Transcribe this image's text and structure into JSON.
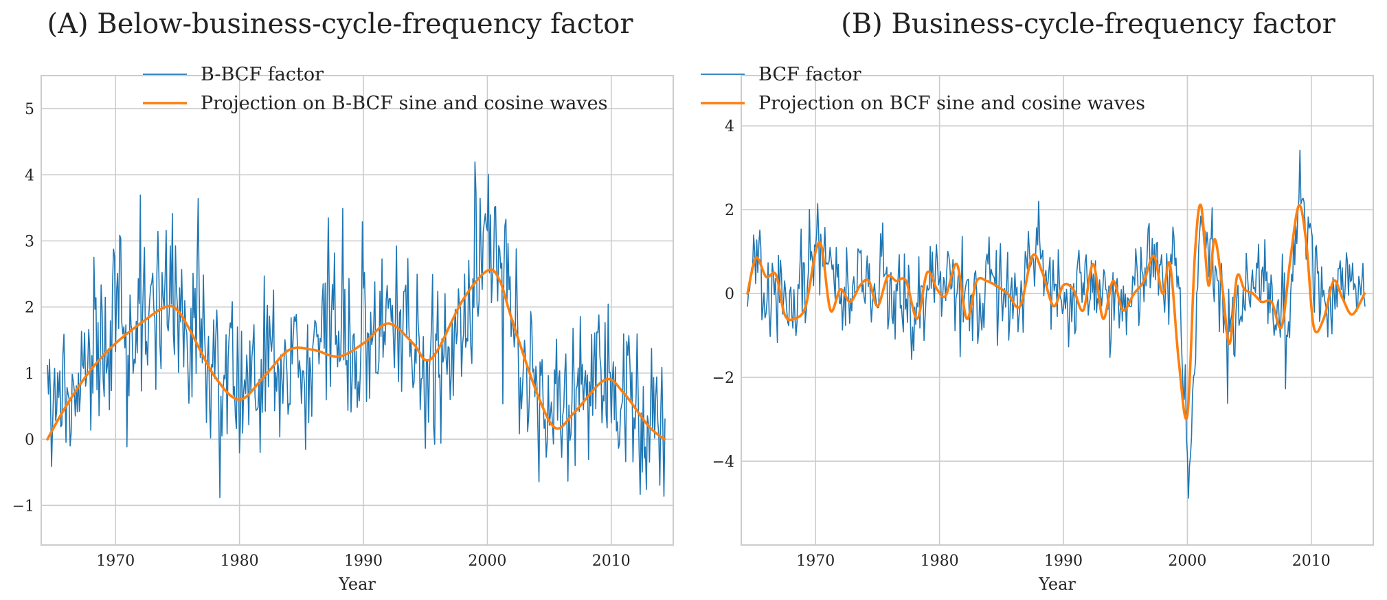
{
  "chart_data": [
    {
      "type": "line",
      "title": "(A) Below-business-cycle-frequency factor",
      "xlabel": "Year",
      "ylabel": "",
      "xlim": [
        1964,
        2015
      ],
      "ylim": [
        -1.6,
        5.5
      ],
      "xticks": [
        1970,
        1980,
        1990,
        2000,
        2010
      ],
      "yticks": [
        -1,
        0,
        1,
        2,
        3,
        4,
        5
      ],
      "ytick_labels": [
        "−1",
        "0",
        "1",
        "2",
        "3",
        "4",
        "5"
      ],
      "grid": true,
      "legend": "top-center",
      "noise_seed": 7,
      "series": [
        {
          "name": "B-BCF factor",
          "color": "#1f77b4",
          "style": "noisy-monthly",
          "x": [
            1964.5,
            1965.5,
            1966.5,
            1967.5,
            1968.5,
            1969.5,
            1970.5,
            1971.5,
            1972.5,
            1973.5,
            1974.5,
            1975.0,
            1975.5,
            1976.5,
            1977.5,
            1978.5,
            1979.5,
            1980.5,
            1981.5,
            1982.5,
            1983.5,
            1984.5,
            1985.5,
            1986.5,
            1987.5,
            1988.5,
            1989.5,
            1990.5,
            1991.5,
            1992.5,
            1993.5,
            1994.5,
            1995.5,
            1996.5,
            1997.5,
            1998.5,
            1999.5,
            2000.0,
            2000.5,
            2001.0,
            2001.5,
            2002.5,
            2003.5,
            2004.5,
            2005.5,
            2006.5,
            2007.5,
            2008.5,
            2009.5,
            2010.5,
            2011.5,
            2012.5,
            2013.5,
            2014.3
          ],
          "values": [
            0.2,
            0.4,
            0.7,
            1.0,
            1.2,
            1.4,
            1.6,
            1.7,
            1.9,
            2.0,
            2.2,
            2.6,
            1.9,
            1.6,
            1.4,
            1.1,
            0.9,
            0.7,
            0.7,
            0.8,
            1.1,
            1.4,
            1.4,
            1.3,
            1.5,
            1.3,
            1.4,
            1.5,
            1.8,
            1.7,
            1.6,
            1.4,
            1.3,
            1.4,
            1.7,
            2.1,
            2.6,
            3.2,
            2.8,
            2.6,
            2.2,
            1.5,
            0.9,
            0.5,
            0.2,
            0.3,
            0.5,
            0.8,
            1.0,
            0.8,
            0.6,
            0.4,
            0.3,
            0.2
          ],
          "noise_amplitude": 0.75
        },
        {
          "name": "Projection on B-BCF sine and cosine waves",
          "color": "#ff7f0e",
          "style": "smooth",
          "x": [
            1964.5,
            1966,
            1968,
            1970,
            1972,
            1974,
            1975,
            1976,
            1978,
            1980,
            1982,
            1984,
            1986,
            1988,
            1990,
            1992,
            1994,
            1995,
            1996,
            1998,
            2000,
            2001,
            2002,
            2004,
            2005.5,
            2007,
            2009.5,
            2011,
            2013,
            2014.3
          ],
          "values": [
            0.0,
            0.5,
            1.05,
            1.45,
            1.75,
            2.0,
            1.95,
            1.65,
            0.95,
            0.6,
            0.95,
            1.35,
            1.35,
            1.25,
            1.45,
            1.75,
            1.45,
            1.2,
            1.35,
            2.1,
            2.55,
            2.4,
            1.8,
            0.7,
            0.17,
            0.4,
            0.9,
            0.7,
            0.2,
            0.0
          ]
        }
      ]
    },
    {
      "type": "line",
      "title": "(B) Business-cycle-frequency factor",
      "xlabel": "Year",
      "ylabel": "",
      "xlim": [
        1964,
        2015
      ],
      "ylim": [
        -6.0,
        5.2
      ],
      "xticks": [
        1970,
        1980,
        1990,
        2000,
        2010
      ],
      "yticks": [
        -4,
        -2,
        0,
        2,
        4
      ],
      "ytick_labels": [
        "−4",
        "−2",
        "0",
        "2",
        "4"
      ],
      "grid": true,
      "legend": "top-left",
      "noise_seed": 23,
      "series": [
        {
          "name": "BCF factor",
          "color": "#1f77b4",
          "style": "noisy-monthly",
          "x": [
            1964.5,
            1966,
            1967.5,
            1969,
            1970.5,
            1972,
            1974,
            1976,
            1978,
            1980,
            1982,
            1983,
            1984,
            1986,
            1988,
            1990,
            1992,
            1994,
            1996,
            1997.5,
            1999,
            1999.8,
            2000.1,
            2001,
            2002,
            2003.5,
            2005,
            2007,
            2008,
            2009,
            2009.8,
            2011,
            2012.5,
            2014.3
          ],
          "values": [
            0.3,
            0.8,
            -0.5,
            0.0,
            1.0,
            -0.3,
            0.4,
            0.2,
            -0.5,
            0.4,
            0.5,
            -0.6,
            0.3,
            0.0,
            0.8,
            -0.3,
            0.5,
            -0.3,
            0.3,
            0.8,
            0.5,
            -2.8,
            -4.8,
            1.5,
            0.3,
            -1.1,
            0.3,
            -0.3,
            -0.7,
            2.2,
            1.5,
            -0.8,
            0.2,
            0.0
          ],
          "noise_amplitude": 0.65
        },
        {
          "name": "Projection on BCF sine and cosine waves",
          "color": "#ff7f0e",
          "style": "smooth",
          "x": [
            1964.5,
            1965.2,
            1966,
            1966.8,
            1967.5,
            1968.3,
            1969.2,
            1970,
            1970.5,
            1971.2,
            1972,
            1972.8,
            1973.6,
            1974.3,
            1975,
            1975.8,
            1976.5,
            1977.3,
            1978.2,
            1979,
            1979.8,
            1980.5,
            1981.4,
            1982.2,
            1983,
            1983.8,
            1984.5,
            1985.5,
            1986.5,
            1987.5,
            1988.3,
            1989.2,
            1990,
            1990.8,
            1991.6,
            1992.4,
            1993.2,
            1994,
            1994.8,
            1995.7,
            1996.5,
            1997.3,
            1998,
            1998.6,
            1999.3,
            2000,
            2000.6,
            2001.1,
            2001.7,
            2002.2,
            2002.8,
            2003.4,
            2004,
            2004.6,
            2005.3,
            2006,
            2006.8,
            2007.6,
            2008.3,
            2009,
            2009.6,
            2010.2,
            2011,
            2011.8,
            2012.5,
            2013.3,
            2014.3
          ],
          "values": [
            0.0,
            0.85,
            0.4,
            0.45,
            -0.5,
            -0.6,
            -0.3,
            1.0,
            1.1,
            -0.4,
            0.1,
            -0.2,
            0.2,
            0.3,
            -0.3,
            0.4,
            0.3,
            0.3,
            -0.6,
            0.5,
            0.1,
            -0.05,
            0.7,
            -0.6,
            0.3,
            0.3,
            0.2,
            0.0,
            -0.3,
            0.9,
            0.5,
            -0.3,
            0.2,
            0.1,
            -0.4,
            0.7,
            -0.6,
            0.3,
            -0.4,
            0.0,
            0.3,
            0.9,
            0.0,
            0.7,
            -1.6,
            -2.9,
            0.9,
            2.1,
            0.2,
            1.3,
            0.2,
            -1.2,
            0.4,
            0.1,
            0.0,
            -0.2,
            -0.2,
            -0.8,
            0.8,
            2.1,
            1.2,
            -0.8,
            -0.6,
            0.3,
            -0.1,
            -0.5,
            0.0
          ]
        }
      ]
    }
  ]
}
